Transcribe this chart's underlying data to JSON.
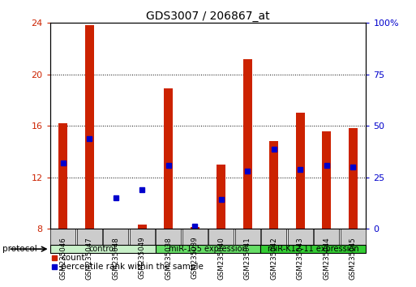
{
  "title": "GDS3007 / 206867_at",
  "samples": [
    "GSM235046",
    "GSM235047",
    "GSM235048",
    "GSM235049",
    "GSM235038",
    "GSM235039",
    "GSM235040",
    "GSM235041",
    "GSM235042",
    "GSM235043",
    "GSM235044",
    "GSM235045"
  ],
  "count_values": [
    16.2,
    23.8,
    7.9,
    8.3,
    18.9,
    8.1,
    13.0,
    21.2,
    14.8,
    17.0,
    15.6,
    15.8
  ],
  "percentile_values": [
    13.1,
    15.0,
    10.4,
    11.0,
    12.9,
    8.2,
    10.3,
    12.5,
    14.2,
    12.6,
    12.9,
    12.8
  ],
  "ylim_left": [
    8,
    24
  ],
  "ylim_right": [
    0,
    100
  ],
  "yticks_left": [
    8,
    12,
    16,
    20,
    24
  ],
  "yticks_right": [
    0,
    25,
    50,
    75,
    100
  ],
  "bar_color": "#cc2200",
  "dot_color": "#0000cc",
  "bar_width": 0.35,
  "group_info": [
    {
      "label": "control",
      "start": 0,
      "end": 3,
      "color": "#c8f0c8"
    },
    {
      "label": "miR-155 expression",
      "start": 4,
      "end": 7,
      "color": "#66dd66"
    },
    {
      "label": "miR-K12-11 expression",
      "start": 8,
      "end": 11,
      "color": "#33cc33"
    }
  ],
  "legend_count_label": "count",
  "legend_pct_label": "percentile rank within the sample",
  "protocol_label": "protocol",
  "background_color": "#ffffff",
  "tick_bg_color": "#cccccc"
}
